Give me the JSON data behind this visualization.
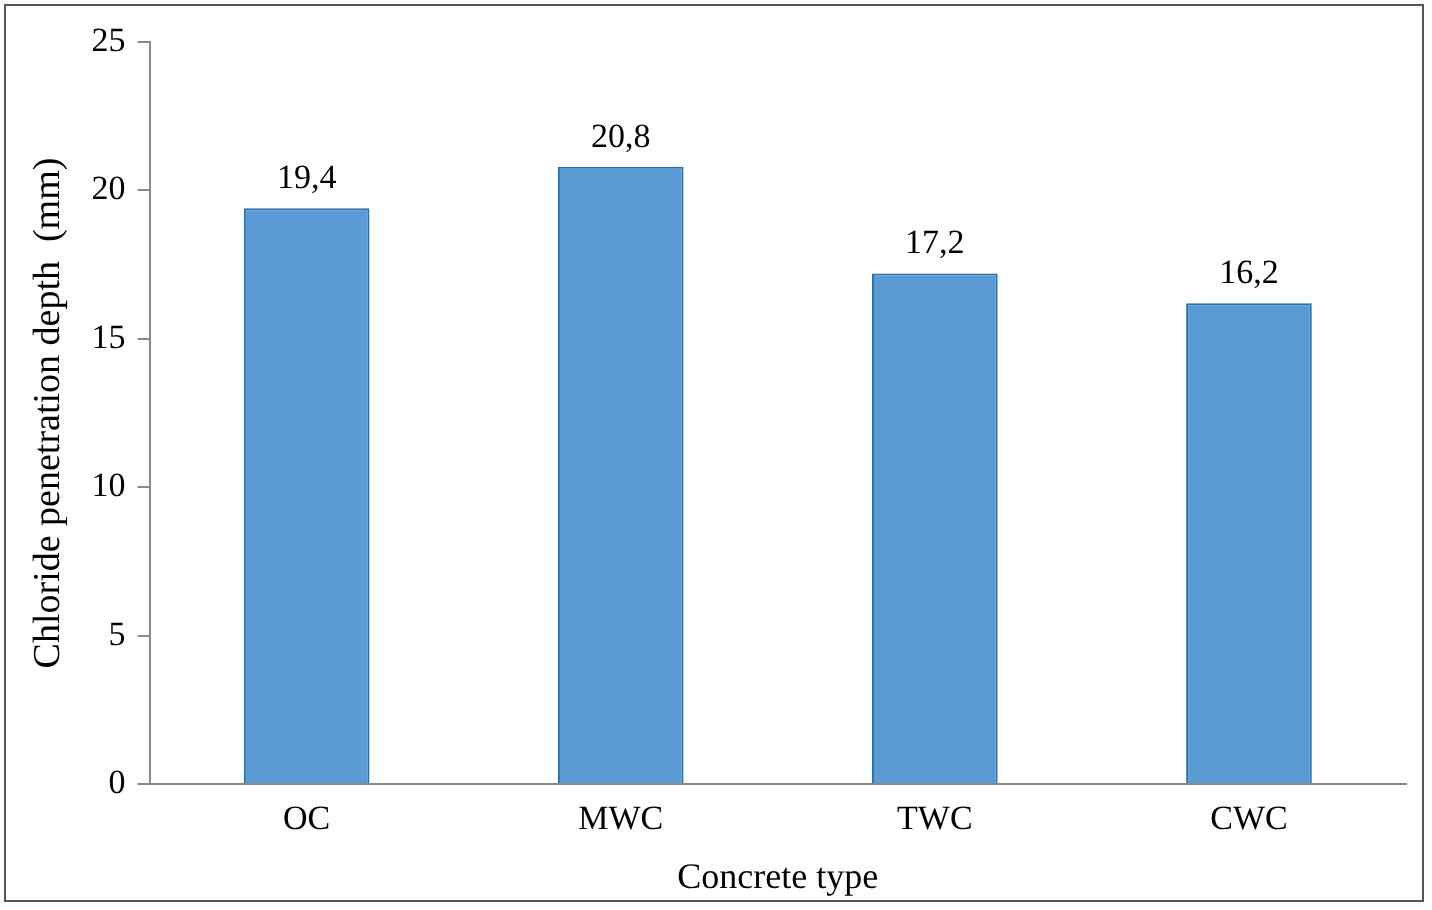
{
  "chart_data": {
    "type": "bar",
    "xlabel": "Concrete type",
    "ylabel": "Chloride penetration depth  (mm)",
    "categories": [
      "OC",
      "MWC",
      "TWC",
      "CWC"
    ],
    "values": [
      19.4,
      20.8,
      17.2,
      16.2
    ],
    "value_labels": [
      "19,4",
      "20,8",
      "17,2",
      "16,2"
    ],
    "color": "#5b9bd5",
    "ylim": [
      0,
      25
    ],
    "yticks": [
      0,
      5,
      10,
      15,
      20,
      25
    ],
    "grid": false,
    "legend": false
  }
}
